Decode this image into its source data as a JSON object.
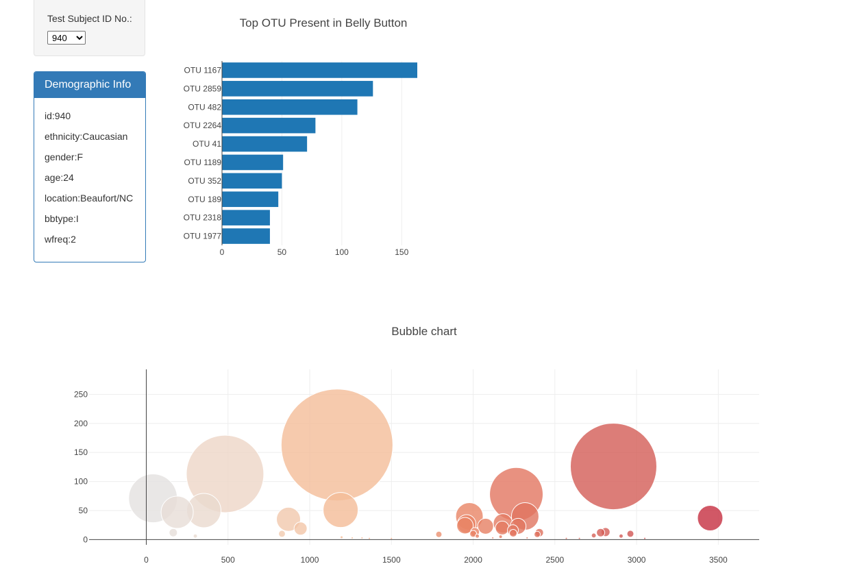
{
  "selector": {
    "label": "Test Subject ID No.:",
    "selected_value": "940"
  },
  "demographics": {
    "title": "Demographic Info",
    "rows": [
      "id:940",
      "ethnicity:Caucasian",
      "gender:F",
      "age:24",
      "location:Beaufort/NC",
      "bbtype:I",
      "wfreq:2"
    ]
  },
  "colors": {
    "panel_primary": "#337ab7",
    "bar_fill": "#1f77b4"
  },
  "chart_data": [
    {
      "type": "bar",
      "orientation": "horizontal",
      "title": "Top OTU Present in Belly Button",
      "categories": [
        "OTU 1167",
        "OTU 2859",
        "OTU 482",
        "OTU 2264",
        "OTU 41",
        "OTU 1189",
        "OTU 352",
        "OTU 189",
        "OTU 2318",
        "OTU 1977"
      ],
      "values": [
        163,
        126,
        113,
        78,
        71,
        51,
        50,
        47,
        40,
        40
      ],
      "xlim": [
        0,
        163
      ],
      "xticks": [
        0,
        50,
        100,
        150
      ],
      "grid": true
    },
    {
      "type": "scatter",
      "title": "Bubble chart",
      "xlim": [
        -350,
        3750
      ],
      "ylim": [
        -9,
        293
      ],
      "xticks": [
        0,
        500,
        1000,
        1500,
        2000,
        2500,
        3000,
        3500
      ],
      "yticks": [
        0,
        50,
        100,
        150,
        200,
        250
      ],
      "grid": true,
      "colorscale": "Earth",
      "color_by": "x",
      "size_by": "y",
      "points": [
        {
          "x": 41,
          "y": 71
        },
        {
          "x": 189,
          "y": 47
        },
        {
          "x": 352,
          "y": 50
        },
        {
          "x": 482,
          "y": 113
        },
        {
          "x": 870,
          "y": 35
        },
        {
          "x": 944,
          "y": 19
        },
        {
          "x": 1167,
          "y": 163
        },
        {
          "x": 1189,
          "y": 51
        },
        {
          "x": 1977,
          "y": 40
        },
        {
          "x": 1960,
          "y": 27
        },
        {
          "x": 1950,
          "y": 24
        },
        {
          "x": 2011,
          "y": 13
        },
        {
          "x": 2076,
          "y": 23
        },
        {
          "x": 2182,
          "y": 28
        },
        {
          "x": 2178,
          "y": 20
        },
        {
          "x": 2264,
          "y": 78
        },
        {
          "x": 2318,
          "y": 40
        },
        {
          "x": 2275,
          "y": 23
        },
        {
          "x": 2243,
          "y": 16
        },
        {
          "x": 2245,
          "y": 11
        },
        {
          "x": 2405,
          "y": 12
        },
        {
          "x": 2859,
          "y": 126
        },
        {
          "x": 3450,
          "y": 37
        },
        {
          "x": 165,
          "y": 12
        },
        {
          "x": 300,
          "y": 6
        },
        {
          "x": 830,
          "y": 10
        },
        {
          "x": 1195,
          "y": 4
        },
        {
          "x": 1790,
          "y": 9
        },
        {
          "x": 2000,
          "y": 10
        },
        {
          "x": 2025,
          "y": 6
        },
        {
          "x": 2168,
          "y": 5
        },
        {
          "x": 2392,
          "y": 9
        },
        {
          "x": 2738,
          "y": 7
        },
        {
          "x": 2780,
          "y": 12
        },
        {
          "x": 2810,
          "y": 13
        },
        {
          "x": 2905,
          "y": 6
        },
        {
          "x": 2962,
          "y": 10
        },
        {
          "x": 1260,
          "y": 3
        },
        {
          "x": 1320,
          "y": 3
        },
        {
          "x": 1365,
          "y": 2
        },
        {
          "x": 1500,
          "y": 2
        },
        {
          "x": 2120,
          "y": 3
        },
        {
          "x": 2330,
          "y": 3
        },
        {
          "x": 2570,
          "y": 2
        },
        {
          "x": 2650,
          "y": 2
        },
        {
          "x": 3050,
          "y": 2
        }
      ]
    }
  ]
}
